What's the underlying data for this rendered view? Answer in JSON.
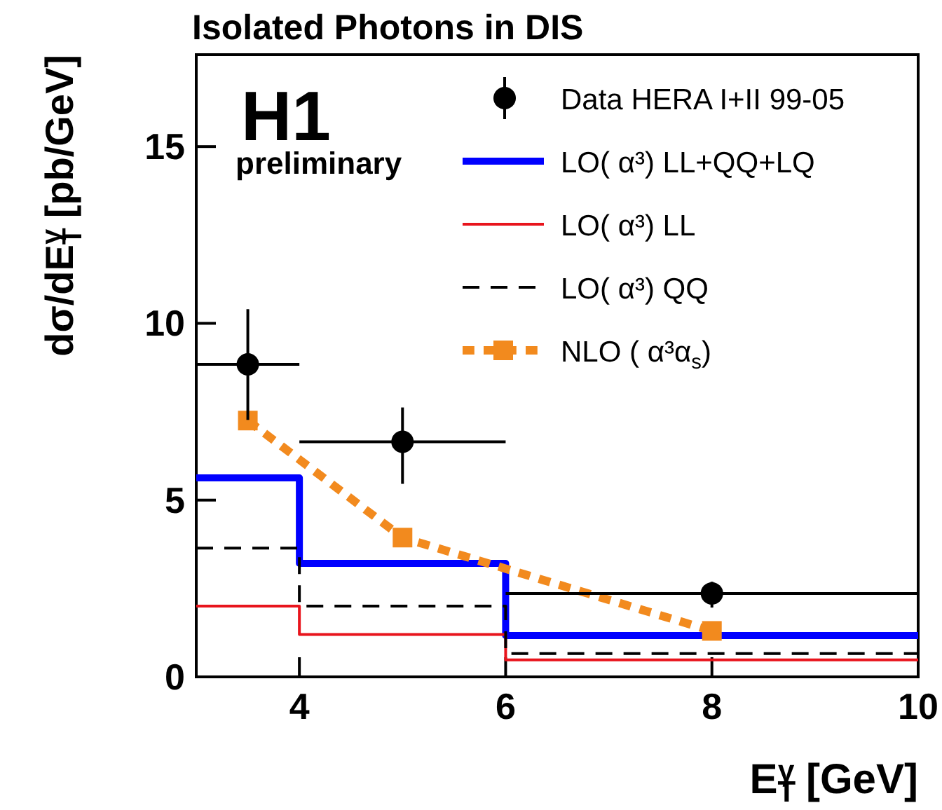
{
  "chart_data": {
    "type": "step",
    "title": "Isolated Photons in DIS",
    "xlabel": "E$_{T}$$^{γ}$ [GeV]",
    "ylabel": "dσ/dE$_{T}$$^{γ}$ [pb/GeV]",
    "annotations": [
      "H1",
      "preliminary"
    ],
    "xlim": [
      3,
      10
    ],
    "xticks": [
      {
        "value": 3,
        "label": null
      },
      4,
      6,
      8,
      10
    ],
    "ylim": [
      0,
      17.6
    ],
    "yticks": [
      0,
      5,
      10,
      15
    ],
    "grid": false,
    "legend": "top right",
    "series": [
      {
        "name": "Data HERA I+II 99-05",
        "type": "scatter",
        "color": "#000000",
        "marker": "circle",
        "x": [
          3.5,
          5,
          8
        ],
        "values": [
          8.84,
          6.65,
          2.36
        ],
        "errors": [
          [
            7.27,
            10.4
          ],
          [
            5.46,
            7.62
          ],
          [
            1.96,
            2.69
          ]
        ],
        "xerrors": [
          0.5,
          1,
          2
        ]
      },
      {
        "name": "LO( α³) LL+QQ+LQ",
        "color": "#0000ff",
        "line_style": "solid",
        "x": [
          3,
          4,
          6,
          10
        ],
        "values": [
          5.63,
          3.21,
          1.17,
          1.17
        ]
      },
      {
        "name": "LO( α³) LL",
        "color": "#e8141c",
        "line_style": "solid",
        "x": [
          3,
          4,
          6,
          10
        ],
        "values": [
          2.0,
          1.2,
          0.48,
          0.48
        ]
      },
      {
        "name": "LO( α³) QQ",
        "color": "#000000",
        "line_style": "dashed",
        "x": [
          3,
          4,
          6,
          10
        ],
        "values": [
          3.64,
          2.0,
          0.66,
          0.66
        ]
      },
      {
        "name": "NLO ( α³α$_{s}$)",
        "type": "line",
        "color": "#f28a1e",
        "line_style": "dotted",
        "marker": "square",
        "x": [
          3.5,
          5,
          8
        ],
        "values": [
          7.25,
          3.94,
          1.3
        ]
      }
    ]
  }
}
